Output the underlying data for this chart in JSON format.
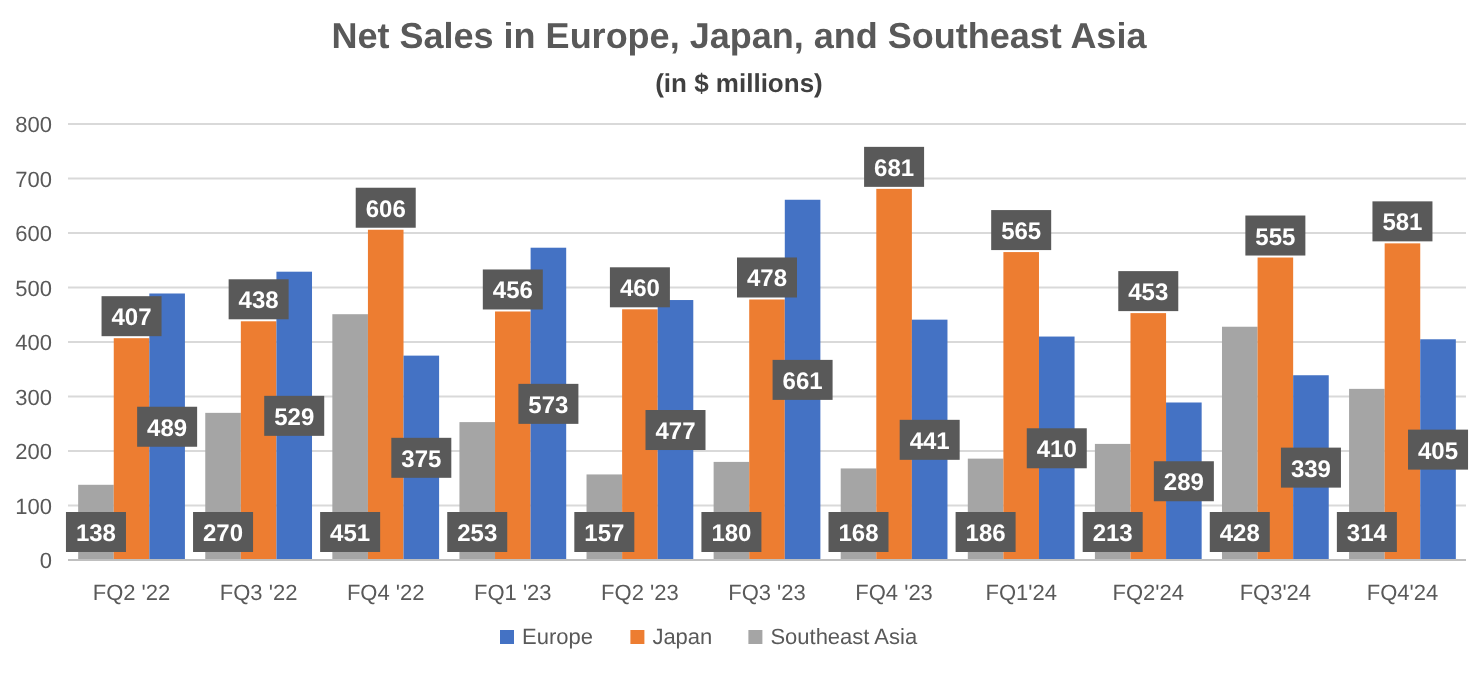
{
  "chart_data": {
    "type": "bar",
    "title": "Net Sales in Europe, Japan, and Southeast Asia",
    "subtitle": "(in $ millions)",
    "categories": [
      "FQ2 '22",
      "FQ3 '22",
      "FQ4 '22",
      "FQ1 '23",
      "FQ2 '23",
      "FQ3 '23",
      "FQ4 '23",
      "FQ1'24",
      "FQ2'24",
      "FQ3'24",
      "FQ4'24"
    ],
    "series": [
      {
        "name": "Southeast Asia",
        "color": "#a5a5a5",
        "values": [
          138,
          270,
          451,
          253,
          157,
          180,
          168,
          186,
          213,
          428,
          314
        ]
      },
      {
        "name": "Japan",
        "color": "#ed7d31",
        "values": [
          407,
          438,
          606,
          456,
          460,
          478,
          681,
          565,
          453,
          555,
          581
        ]
      },
      {
        "name": "Europe",
        "color": "#4472c4",
        "values": [
          489,
          529,
          375,
          573,
          477,
          661,
          441,
          410,
          289,
          339,
          405
        ]
      }
    ],
    "ylim": [
      0,
      800
    ],
    "yticks": [
      0,
      100,
      200,
      300,
      400,
      500,
      600,
      700,
      800
    ],
    "grid": "y",
    "legend": "bottom",
    "data_labels": true
  }
}
